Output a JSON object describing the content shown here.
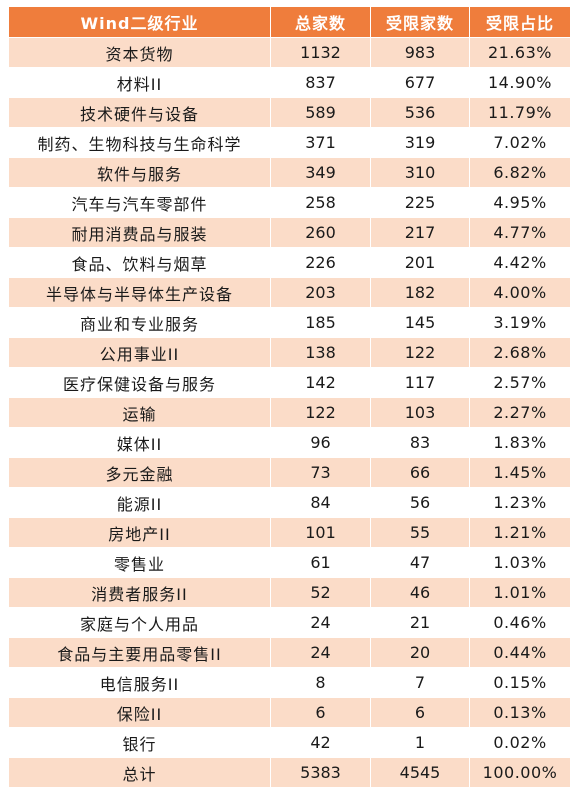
{
  "header": {
    "industry": "Wind二级行业",
    "total": "总家数",
    "restricted": "受限家数",
    "ratio": "受限占比"
  },
  "rows": [
    {
      "industry": "资本货物",
      "total": "1132",
      "restricted": "983",
      "ratio": "21.63%"
    },
    {
      "industry": "材料II",
      "total": "837",
      "restricted": "677",
      "ratio": "14.90%"
    },
    {
      "industry": "技术硬件与设备",
      "total": "589",
      "restricted": "536",
      "ratio": "11.79%"
    },
    {
      "industry": "制药、生物科技与生命科学",
      "total": "371",
      "restricted": "319",
      "ratio": "7.02%"
    },
    {
      "industry": "软件与服务",
      "total": "349",
      "restricted": "310",
      "ratio": "6.82%"
    },
    {
      "industry": "汽车与汽车零部件",
      "total": "258",
      "restricted": "225",
      "ratio": "4.95%"
    },
    {
      "industry": "耐用消费品与服装",
      "total": "260",
      "restricted": "217",
      "ratio": "4.77%"
    },
    {
      "industry": "食品、饮料与烟草",
      "total": "226",
      "restricted": "201",
      "ratio": "4.42%"
    },
    {
      "industry": "半导体与半导体生产设备",
      "total": "203",
      "restricted": "182",
      "ratio": "4.00%"
    },
    {
      "industry": "商业和专业服务",
      "total": "185",
      "restricted": "145",
      "ratio": "3.19%"
    },
    {
      "industry": "公用事业II",
      "total": "138",
      "restricted": "122",
      "ratio": "2.68%"
    },
    {
      "industry": "医疗保健设备与服务",
      "total": "142",
      "restricted": "117",
      "ratio": "2.57%"
    },
    {
      "industry": "运输",
      "total": "122",
      "restricted": "103",
      "ratio": "2.27%"
    },
    {
      "industry": "媒体II",
      "total": "96",
      "restricted": "83",
      "ratio": "1.83%"
    },
    {
      "industry": "多元金融",
      "total": "73",
      "restricted": "66",
      "ratio": "1.45%"
    },
    {
      "industry": "能源II",
      "total": "84",
      "restricted": "56",
      "ratio": "1.23%"
    },
    {
      "industry": "房地产II",
      "total": "101",
      "restricted": "55",
      "ratio": "1.21%"
    },
    {
      "industry": "零售业",
      "total": "61",
      "restricted": "47",
      "ratio": "1.03%"
    },
    {
      "industry": "消费者服务II",
      "total": "52",
      "restricted": "46",
      "ratio": "1.01%"
    },
    {
      "industry": "家庭与个人用品",
      "total": "24",
      "restricted": "21",
      "ratio": "0.46%"
    },
    {
      "industry": "食品与主要用品零售II",
      "total": "24",
      "restricted": "20",
      "ratio": "0.44%"
    },
    {
      "industry": "电信服务II",
      "total": "8",
      "restricted": "7",
      "ratio": "0.15%"
    },
    {
      "industry": "保险II",
      "total": "6",
      "restricted": "6",
      "ratio": "0.13%"
    },
    {
      "industry": "银行",
      "total": "42",
      "restricted": "1",
      "ratio": "0.02%"
    }
  ],
  "footer": {
    "industry": "总计",
    "total": "5383",
    "restricted": "4545",
    "ratio": "100.00%"
  },
  "colors": {
    "header_bg": "#ef7d3c",
    "stripe_bg": "#fbdcc8"
  }
}
